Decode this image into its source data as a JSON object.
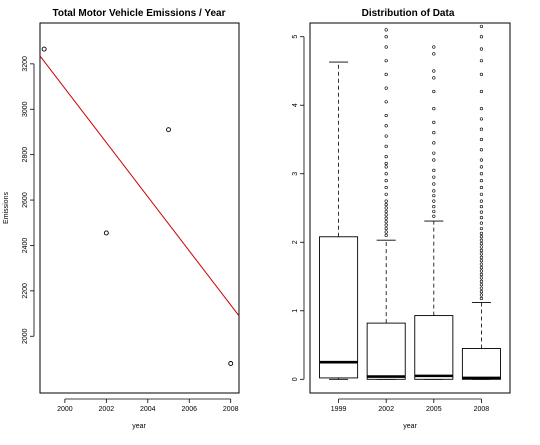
{
  "chart_data": [
    {
      "type": "scatter",
      "title": "Total Motor Vehicle Emissions / Year",
      "xlabel": "year",
      "ylabel": "Emissions",
      "xlim": [
        1998.8,
        2008.4
      ],
      "ylim": [
        1750,
        3380
      ],
      "x_ticks": [
        2000,
        2002,
        2004,
        2006,
        2008
      ],
      "x_tick_labels": [
        "2000",
        "2002",
        "2004",
        "2006",
        "2008"
      ],
      "y_ticks": [
        2000,
        2200,
        2400,
        2600,
        2800,
        3000,
        3200
      ],
      "y_tick_labels": [
        "2000",
        "2200",
        "2400",
        "2600",
        "2800",
        "3000",
        "3200"
      ],
      "series": [
        {
          "points": [
            [
              1999,
              3265
            ],
            [
              2002,
              2455
            ],
            [
              2005,
              2910
            ],
            [
              2008,
              1880
            ]
          ],
          "color": "#000000"
        }
      ],
      "trend_line": {
        "x1": 1998.8,
        "y1": 3235,
        "x2": 2008.4,
        "y2": 2090,
        "color": "#cc0000"
      },
      "grid": false
    },
    {
      "type": "box",
      "title": "Distribution of Data",
      "xlabel": "year",
      "ylabel": "",
      "categories": [
        "1999",
        "2002",
        "2005",
        "2008"
      ],
      "ylim": [
        -0.2,
        5.2
      ],
      "y_ticks": [
        0,
        1,
        2,
        3,
        4,
        5
      ],
      "y_tick_labels": [
        "0",
        "1",
        "2",
        "3",
        "4",
        "5"
      ],
      "boxes": [
        {
          "q1": 0.02,
          "median": 0.25,
          "q3": 2.08,
          "whisker_low": 0.0,
          "whisker_high": 4.63,
          "outliers": []
        },
        {
          "q1": 0.0,
          "median": 0.04,
          "q3": 0.82,
          "whisker_low": 0.0,
          "whisker_high": 2.03,
          "outliers": [
            2.1,
            2.15,
            2.2,
            2.25,
            2.3,
            2.35,
            2.4,
            2.45,
            2.5,
            2.55,
            2.6,
            2.7,
            2.8,
            2.9,
            3.0,
            3.1,
            3.15,
            3.25,
            3.4,
            3.55,
            3.7,
            3.85,
            4.05,
            4.25,
            4.45,
            4.65,
            4.85,
            5.0,
            5.1
          ]
        },
        {
          "q1": 0.0,
          "median": 0.05,
          "q3": 0.93,
          "whisker_low": 0.0,
          "whisker_high": 2.31,
          "outliers": [
            2.38,
            2.45,
            2.52,
            2.6,
            2.68,
            2.75,
            2.85,
            2.95,
            3.05,
            3.2,
            3.3,
            3.45,
            3.6,
            3.75,
            3.95,
            4.2,
            4.4,
            4.5,
            4.75,
            4.85
          ]
        },
        {
          "q1": 0.0,
          "median": 0.02,
          "q3": 0.45,
          "whisker_low": 0.0,
          "whisker_high": 1.12,
          "outliers": [
            1.18,
            1.23,
            1.28,
            1.33,
            1.38,
            1.43,
            1.48,
            1.53,
            1.58,
            1.63,
            1.68,
            1.73,
            1.78,
            1.83,
            1.88,
            1.93,
            1.98,
            2.03,
            2.08,
            2.13,
            2.2,
            2.28,
            2.36,
            2.44,
            2.52,
            2.6,
            2.7,
            2.8,
            2.9,
            3.0,
            3.1,
            3.2,
            3.35,
            3.5,
            3.65,
            3.8,
            3.95,
            4.2,
            4.45,
            4.65,
            4.82,
            5.0,
            5.15
          ]
        }
      ],
      "grid": false
    }
  ]
}
